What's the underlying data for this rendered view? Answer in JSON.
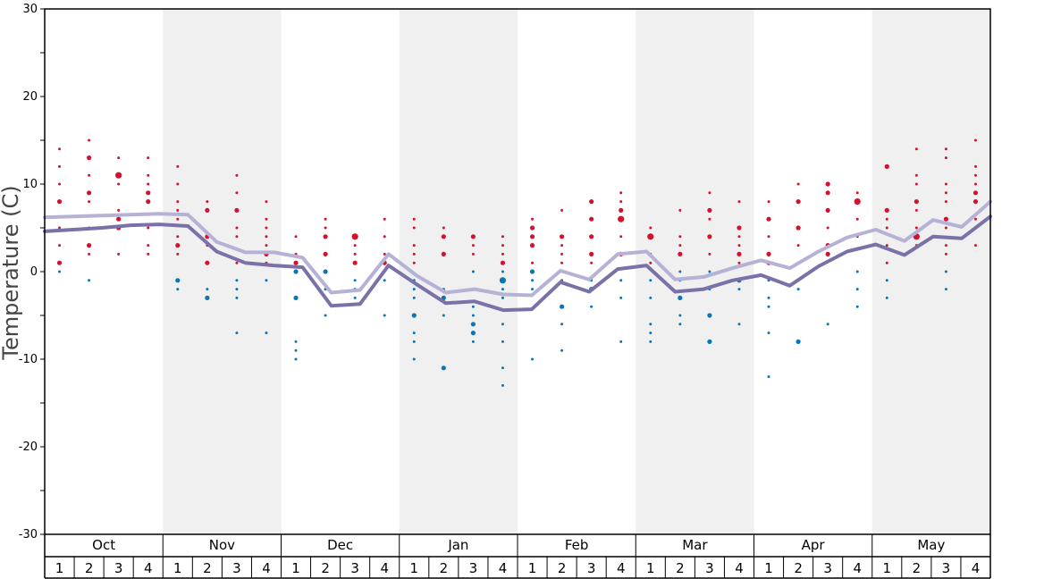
{
  "chart_data": {
    "type": "line",
    "ylabel": "Temperature (C)",
    "xlabel": "",
    "ylim": [
      -30,
      30
    ],
    "y_ticks": [
      30,
      20,
      10,
      0,
      -10,
      -20,
      -30
    ],
    "months": [
      "Oct",
      "Nov",
      "Dec",
      "Jan",
      "Feb",
      "Mar",
      "Apr",
      "May"
    ],
    "weeks": [
      "1",
      "2",
      "3",
      "4"
    ],
    "shaded_months": [
      "Nov",
      "Jan",
      "Mar",
      "May"
    ],
    "colors": {
      "line_light": "#b5b2d6",
      "line_dark": "#7a71a8",
      "warm_dot": "#d4112e",
      "cold_dot": "#0a76b5",
      "shade": "#f0f0f0"
    },
    "series": [
      {
        "values": [
          6.2,
          6.3,
          6.4,
          6.5,
          6.6,
          6.5,
          3.4,
          2.2,
          2.2,
          1.6,
          -2.4,
          -2.1,
          2.0,
          -0.5,
          -2.4,
          -2.0,
          -2.6,
          -2.7,
          0.1,
          -0.9,
          2.0,
          2.3,
          -0.9,
          -0.6,
          0.4,
          1.3,
          0.4,
          2.3,
          3.9,
          4.8,
          3.5,
          5.9,
          5.1,
          8.0
        ]
      },
      {
        "values": [
          4.6,
          4.8,
          5.0,
          5.3,
          5.4,
          5.2,
          2.3,
          1.0,
          0.7,
          0.5,
          -3.9,
          -3.7,
          0.7,
          -1.5,
          -3.6,
          -3.4,
          -4.4,
          -4.3,
          -1.2,
          -2.3,
          0.3,
          0.7,
          -2.3,
          -2.0,
          -1.0,
          -0.4,
          -1.6,
          0.6,
          2.3,
          3.1,
          1.9,
          4.0,
          3.8,
          6.3
        ]
      }
    ],
    "scatter": {
      "warm": [
        [
          1,
          14,
          1
        ],
        [
          1,
          12,
          1
        ],
        [
          1,
          10,
          1
        ],
        [
          1,
          8,
          2
        ],
        [
          1,
          5,
          1
        ],
        [
          1,
          3,
          1
        ],
        [
          1,
          1,
          2
        ],
        [
          2,
          15,
          1
        ],
        [
          2,
          13,
          2
        ],
        [
          2,
          11,
          1
        ],
        [
          2,
          9,
          2
        ],
        [
          2,
          8,
          1
        ],
        [
          2,
          5,
          1
        ],
        [
          2,
          3,
          2
        ],
        [
          2,
          2,
          1
        ],
        [
          3,
          13,
          1
        ],
        [
          3,
          11,
          3
        ],
        [
          3,
          10,
          1
        ],
        [
          3,
          7,
          1
        ],
        [
          3,
          6,
          2
        ],
        [
          3,
          5,
          2
        ],
        [
          3,
          2,
          1
        ],
        [
          4,
          13,
          1
        ],
        [
          4,
          11,
          1
        ],
        [
          4,
          10,
          1
        ],
        [
          4,
          9,
          2
        ],
        [
          4,
          8,
          2
        ],
        [
          4,
          5,
          1
        ],
        [
          4,
          3,
          1
        ],
        [
          4,
          2,
          1
        ],
        [
          5,
          12,
          1
        ],
        [
          5,
          10,
          1
        ],
        [
          5,
          8,
          1
        ],
        [
          5,
          7,
          1
        ],
        [
          5,
          6,
          1
        ],
        [
          5,
          4,
          1
        ],
        [
          5,
          3,
          2
        ],
        [
          5,
          2,
          1
        ],
        [
          6,
          8,
          1
        ],
        [
          6,
          7,
          2
        ],
        [
          6,
          4,
          2
        ],
        [
          6,
          3,
          1
        ],
        [
          6,
          1,
          2
        ],
        [
          7,
          11,
          1
        ],
        [
          7,
          9,
          1
        ],
        [
          7,
          7,
          2
        ],
        [
          7,
          5,
          1
        ],
        [
          7,
          4,
          1
        ],
        [
          7,
          1,
          1
        ],
        [
          8,
          8,
          1
        ],
        [
          8,
          6,
          1
        ],
        [
          8,
          5,
          1
        ],
        [
          8,
          4,
          1
        ],
        [
          8,
          3,
          1
        ],
        [
          8,
          2,
          2
        ],
        [
          8,
          1,
          1
        ],
        [
          9,
          4,
          1
        ],
        [
          9,
          2,
          1
        ],
        [
          9,
          1,
          2
        ],
        [
          10,
          6,
          1
        ],
        [
          10,
          5,
          1
        ],
        [
          10,
          4,
          2
        ],
        [
          10,
          2,
          2
        ],
        [
          11,
          4,
          3
        ],
        [
          11,
          3,
          1
        ],
        [
          11,
          2,
          1
        ],
        [
          11,
          1,
          2
        ],
        [
          12,
          6,
          1
        ],
        [
          12,
          4,
          1
        ],
        [
          12,
          2,
          1
        ],
        [
          12,
          1,
          2
        ],
        [
          13,
          6,
          1
        ],
        [
          13,
          5,
          1
        ],
        [
          13,
          3,
          1
        ],
        [
          13,
          2,
          1
        ],
        [
          13,
          1,
          1
        ],
        [
          14,
          5,
          1
        ],
        [
          14,
          4,
          2
        ],
        [
          14,
          2,
          2
        ],
        [
          15,
          4,
          2
        ],
        [
          15,
          3,
          1
        ],
        [
          15,
          2,
          1
        ],
        [
          16,
          4,
          1
        ],
        [
          16,
          3,
          1
        ],
        [
          16,
          2,
          1
        ],
        [
          16,
          1,
          2
        ],
        [
          17,
          6,
          1
        ],
        [
          17,
          5,
          2
        ],
        [
          17,
          4,
          2
        ],
        [
          17,
          3,
          2
        ],
        [
          17,
          1,
          1
        ],
        [
          18,
          7,
          1
        ],
        [
          18,
          4,
          2
        ],
        [
          18,
          3,
          1
        ],
        [
          18,
          2,
          1
        ],
        [
          18,
          1,
          1
        ],
        [
          19,
          8,
          2
        ],
        [
          19,
          6,
          2
        ],
        [
          19,
          4,
          2
        ],
        [
          19,
          2,
          2
        ],
        [
          19,
          1,
          1
        ],
        [
          20,
          9,
          1
        ],
        [
          20,
          8,
          1
        ],
        [
          20,
          7,
          2
        ],
        [
          20,
          6,
          3
        ],
        [
          20,
          4,
          1
        ],
        [
          20,
          2,
          2
        ],
        [
          21,
          5,
          1
        ],
        [
          21,
          4,
          3
        ],
        [
          21,
          2,
          1
        ],
        [
          21,
          1,
          1
        ],
        [
          22,
          7,
          1
        ],
        [
          22,
          4,
          1
        ],
        [
          22,
          3,
          1
        ],
        [
          22,
          2,
          2
        ],
        [
          23,
          9,
          1
        ],
        [
          23,
          7,
          2
        ],
        [
          23,
          6,
          1
        ],
        [
          23,
          4,
          2
        ],
        [
          23,
          2,
          1
        ],
        [
          24,
          8,
          1
        ],
        [
          24,
          5,
          2
        ],
        [
          24,
          4,
          1
        ],
        [
          24,
          3,
          1
        ],
        [
          24,
          2,
          2
        ],
        [
          24,
          1,
          1
        ],
        [
          25,
          8,
          1
        ],
        [
          25,
          6,
          2
        ],
        [
          25,
          4,
          1
        ],
        [
          25,
          2,
          2
        ],
        [
          25,
          1,
          2
        ],
        [
          26,
          10,
          1
        ],
        [
          26,
          8,
          2
        ],
        [
          26,
          5,
          2
        ],
        [
          26,
          3,
          1
        ],
        [
          26,
          1,
          1
        ],
        [
          27,
          10,
          2
        ],
        [
          27,
          9,
          2
        ],
        [
          27,
          7,
          2
        ],
        [
          27,
          5,
          1
        ],
        [
          27,
          3,
          2
        ],
        [
          27,
          2,
          2
        ],
        [
          28,
          9,
          1
        ],
        [
          28,
          8,
          3
        ],
        [
          28,
          6,
          1
        ],
        [
          28,
          4,
          1
        ],
        [
          29,
          12,
          2
        ],
        [
          29,
          7,
          2
        ],
        [
          29,
          6,
          1
        ],
        [
          29,
          5,
          1
        ],
        [
          29,
          3,
          1
        ],
        [
          29,
          1,
          1
        ],
        [
          30,
          14,
          1
        ],
        [
          30,
          11,
          1
        ],
        [
          30,
          10,
          1
        ],
        [
          30,
          8,
          2
        ],
        [
          30,
          7,
          1
        ],
        [
          30,
          5,
          1
        ],
        [
          30,
          4,
          3
        ],
        [
          30,
          3,
          1
        ],
        [
          31,
          14,
          1
        ],
        [
          31,
          13,
          1
        ],
        [
          31,
          10,
          1
        ],
        [
          31,
          9,
          1
        ],
        [
          31,
          8,
          1
        ],
        [
          31,
          6,
          2
        ],
        [
          31,
          5,
          1
        ],
        [
          31,
          3,
          1
        ],
        [
          31,
          2,
          1
        ],
        [
          32,
          15,
          1
        ],
        [
          32,
          12,
          1
        ],
        [
          32,
          11,
          1
        ],
        [
          32,
          10,
          1
        ],
        [
          32,
          9,
          2
        ],
        [
          32,
          8,
          2
        ],
        [
          32,
          6,
          1
        ],
        [
          32,
          3,
          1
        ]
      ],
      "cold": [
        [
          1,
          0,
          1
        ],
        [
          2,
          -1,
          1
        ],
        [
          5,
          -1,
          2
        ],
        [
          5,
          -2,
          1
        ],
        [
          6,
          -2,
          1
        ],
        [
          6,
          -3,
          2
        ],
        [
          7,
          -1,
          1
        ],
        [
          7,
          -2,
          1
        ],
        [
          7,
          -3,
          1
        ],
        [
          7,
          -7,
          1
        ],
        [
          8,
          -1,
          1
        ],
        [
          8,
          -7,
          1
        ],
        [
          9,
          0,
          2
        ],
        [
          9,
          -3,
          2
        ],
        [
          9,
          -8,
          1
        ],
        [
          9,
          -9,
          1
        ],
        [
          9,
          -10,
          1
        ],
        [
          10,
          0,
          2
        ],
        [
          10,
          -2,
          1
        ],
        [
          10,
          -5,
          1
        ],
        [
          11,
          -1,
          1
        ],
        [
          11,
          -2,
          1
        ],
        [
          11,
          -3,
          1
        ],
        [
          12,
          -1,
          1
        ],
        [
          12,
          -5,
          1
        ],
        [
          13,
          -1,
          1
        ],
        [
          13,
          -2,
          1
        ],
        [
          13,
          -3,
          1
        ],
        [
          13,
          -5,
          2
        ],
        [
          13,
          -7,
          1
        ],
        [
          13,
          -8,
          1
        ],
        [
          13,
          -10,
          1
        ],
        [
          14,
          -2,
          1
        ],
        [
          14,
          -3,
          2
        ],
        [
          14,
          -5,
          1
        ],
        [
          14,
          -11,
          2
        ],
        [
          15,
          0,
          1
        ],
        [
          15,
          -2,
          1
        ],
        [
          15,
          -4,
          1
        ],
        [
          15,
          -5,
          1
        ],
        [
          15,
          -6,
          2
        ],
        [
          15,
          -7,
          2
        ],
        [
          15,
          -8,
          1
        ],
        [
          16,
          0,
          1
        ],
        [
          16,
          -1,
          3
        ],
        [
          16,
          -2,
          1
        ],
        [
          16,
          -3,
          1
        ],
        [
          16,
          -6,
          1
        ],
        [
          16,
          -8,
          1
        ],
        [
          16,
          -11,
          1
        ],
        [
          16,
          -13,
          1
        ],
        [
          17,
          0,
          2
        ],
        [
          17,
          -1,
          1
        ],
        [
          17,
          -2,
          1
        ],
        [
          17,
          -10,
          1
        ],
        [
          18,
          -1,
          1
        ],
        [
          18,
          -4,
          2
        ],
        [
          18,
          -6,
          1
        ],
        [
          18,
          -9,
          1
        ],
        [
          19,
          -1,
          1
        ],
        [
          19,
          -2,
          2
        ],
        [
          19,
          -4,
          1
        ],
        [
          20,
          -1,
          1
        ],
        [
          20,
          -3,
          1
        ],
        [
          20,
          -8,
          1
        ],
        [
          21,
          -1,
          1
        ],
        [
          21,
          -3,
          1
        ],
        [
          21,
          -6,
          1
        ],
        [
          21,
          -7,
          1
        ],
        [
          21,
          -8,
          1
        ],
        [
          22,
          0,
          1
        ],
        [
          22,
          -1,
          1
        ],
        [
          22,
          -3,
          2
        ],
        [
          22,
          -5,
          1
        ],
        [
          22,
          -6,
          1
        ],
        [
          23,
          0,
          1
        ],
        [
          23,
          -2,
          1
        ],
        [
          23,
          -5,
          2
        ],
        [
          23,
          -8,
          2
        ],
        [
          24,
          -1,
          2
        ],
        [
          24,
          -2,
          1
        ],
        [
          24,
          -6,
          1
        ],
        [
          25,
          -1,
          1
        ],
        [
          25,
          -3,
          1
        ],
        [
          25,
          -4,
          1
        ],
        [
          25,
          -7,
          1
        ],
        [
          25,
          -12,
          1
        ],
        [
          26,
          -1,
          1
        ],
        [
          26,
          -2,
          1
        ],
        [
          26,
          -8,
          2
        ],
        [
          27,
          -6,
          1
        ],
        [
          28,
          0,
          1
        ],
        [
          28,
          -2,
          1
        ],
        [
          28,
          -4,
          1
        ],
        [
          29,
          -1,
          1
        ],
        [
          29,
          -3,
          1
        ],
        [
          31,
          0,
          1
        ],
        [
          31,
          -2,
          1
        ]
      ]
    }
  }
}
